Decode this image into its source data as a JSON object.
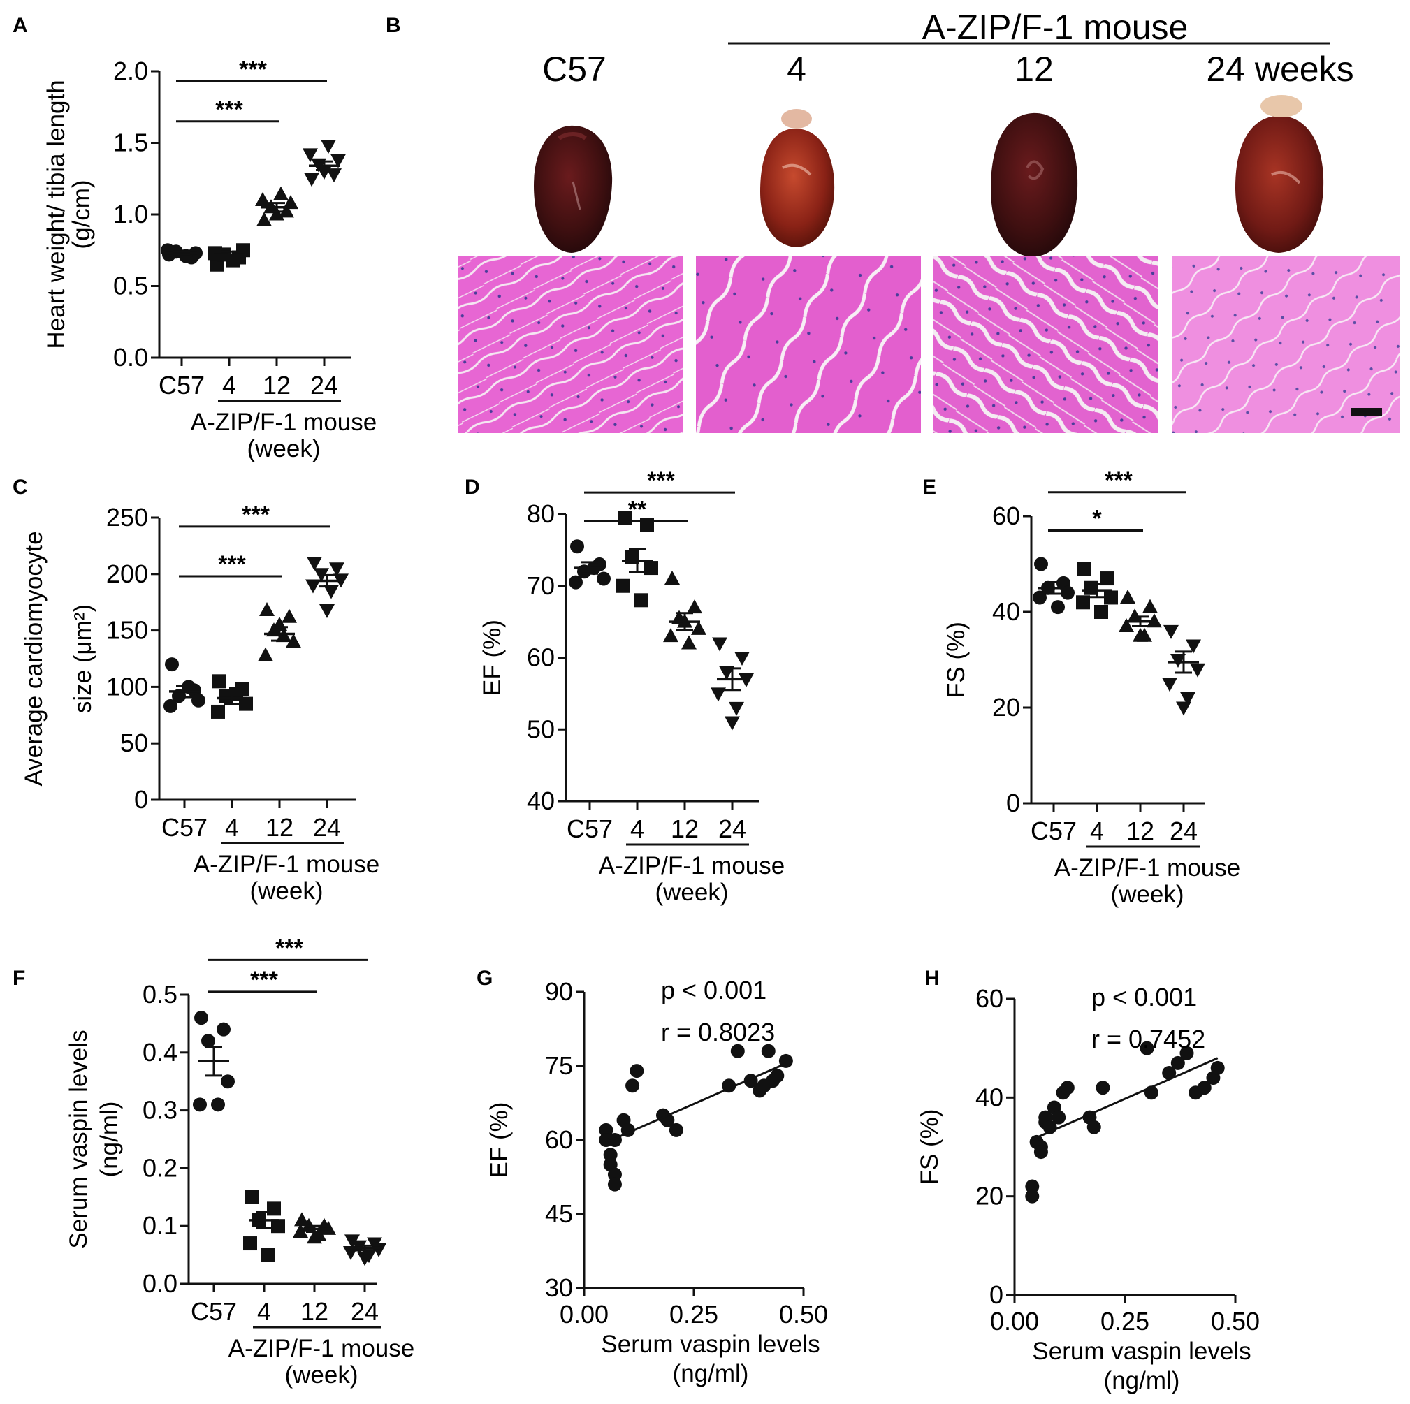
{
  "panel_labels": {
    "A": "A",
    "B": "B",
    "C": "C",
    "D": "D",
    "E": "E",
    "F": "F",
    "G": "G",
    "H": "H"
  },
  "colors": {
    "ink": "#111111",
    "heart_dark": "#3e0f10",
    "heart_red": "#8a2216",
    "tissue_pink": "#e75fd0",
    "tissue_space": "#f2ecec",
    "nuclei": "#4a3d9a"
  },
  "panel_b": {
    "group_label": "A-ZIP/F-1 mouse",
    "columns": [
      "C57",
      "4",
      "12",
      "24 weeks"
    ]
  },
  "chart_data": [
    {
      "id": "A",
      "type": "scatter-dot",
      "ylabel": [
        "Heart weight/ tibia length",
        "(g/cm)"
      ],
      "yticks": [
        0.0,
        0.5,
        1.0,
        1.5,
        2.0
      ],
      "ytick_labels": [
        "0.0",
        "0.5",
        "1.0",
        "1.5",
        "2.0"
      ],
      "ylim": [
        0,
        2.0
      ],
      "categories": [
        "C57",
        "4",
        "12",
        "24"
      ],
      "group_label": [
        "A-ZIP/F-1 mouse",
        "(week)"
      ],
      "markers": [
        "circle",
        "square",
        "triangle",
        "triangle-down"
      ],
      "points": [
        [
          0.72,
          0.7,
          0.74,
          0.73,
          0.75,
          0.71
        ],
        [
          0.65,
          0.7,
          0.72,
          0.75,
          0.73,
          0.68
        ],
        [
          0.96,
          1.02,
          1.05,
          1.08,
          1.1,
          1.14,
          1.0
        ],
        [
          1.25,
          1.28,
          1.35,
          1.38,
          1.42,
          1.48,
          1.3
        ]
      ],
      "mean": [
        0.73,
        0.72,
        1.05,
        1.34
      ],
      "sem": [
        0.01,
        0.02,
        0.03,
        0.03
      ],
      "sig": [
        {
          "from": 0,
          "to": 2,
          "label": "***",
          "y": 1.65
        },
        {
          "from": 0,
          "to": 3,
          "label": "***",
          "y": 1.93
        }
      ]
    },
    {
      "id": "C",
      "type": "scatter-dot",
      "ylabel": [
        "Average cardiomyocyte",
        "size (μm²)"
      ],
      "yticks": [
        0,
        50,
        100,
        150,
        200,
        250
      ],
      "ytick_labels": [
        "0",
        "50",
        "100",
        "150",
        "200",
        "250"
      ],
      "ylim": [
        0,
        250
      ],
      "categories": [
        "C57",
        "4",
        "12",
        "24"
      ],
      "group_label": [
        "A-ZIP/F-1 mouse",
        "(week)"
      ],
      "markers": [
        "circle",
        "square",
        "triangle",
        "triangle-down"
      ],
      "points": [
        [
          120,
          97,
          92,
          88,
          83,
          100
        ],
        [
          105,
          98,
          92,
          85,
          78,
          94
        ],
        [
          168,
          162,
          150,
          140,
          128,
          145,
          155
        ],
        [
          210,
          205,
          200,
          195,
          190,
          185,
          168
        ]
      ],
      "mean": [
        96,
        90,
        147,
        194
      ],
      "sem": [
        5,
        5,
        6,
        5
      ],
      "sig": [
        {
          "from": 0,
          "to": 2,
          "label": "***",
          "y": 198
        },
        {
          "from": 0,
          "to": 3,
          "label": "***",
          "y": 242
        }
      ]
    },
    {
      "id": "D",
      "type": "scatter-dot",
      "ylabel": [
        "EF (%)"
      ],
      "yticks": [
        40,
        50,
        60,
        70,
        80
      ],
      "ytick_labels": [
        "40",
        "50",
        "60",
        "70",
        "80"
      ],
      "ylim": [
        40,
        80
      ],
      "categories": [
        "C57",
        "4",
        "12",
        "24"
      ],
      "group_label": [
        "A-ZIP/F-1 mouse",
        "(week)"
      ],
      "markers": [
        "circle",
        "square",
        "triangle",
        "triangle-down"
      ],
      "points": [
        [
          75.5,
          73,
          72,
          71,
          70.5,
          72.5
        ],
        [
          79.5,
          78.5,
          74,
          72.5,
          70,
          68
        ],
        [
          71,
          67,
          65.5,
          64,
          63,
          62,
          65
        ],
        [
          62,
          60,
          58,
          57,
          55,
          53,
          51
        ]
      ],
      "mean": [
        72.5,
        73.5,
        65,
        57
      ],
      "sem": [
        0.8,
        1.6,
        1.2,
        1.5
      ],
      "sig": [
        {
          "from": 0,
          "to": 2,
          "label": "**",
          "y": 79
        },
        {
          "from": 0,
          "to": 3,
          "label": "***",
          "y": 83
        }
      ]
    },
    {
      "id": "E",
      "type": "scatter-dot",
      "ylabel": [
        "FS (%)"
      ],
      "yticks": [
        0,
        20,
        40,
        60
      ],
      "ytick_labels": [
        "0",
        "20",
        "40",
        "60"
      ],
      "ylim": [
        0,
        60
      ],
      "categories": [
        "C57",
        "4",
        "12",
        "24"
      ],
      "group_label": [
        "A-ZIP/F-1 mouse",
        "(week)"
      ],
      "markers": [
        "circle",
        "square",
        "triangle",
        "triangle-down"
      ],
      "points": [
        [
          50,
          46,
          45,
          44,
          43,
          41
        ],
        [
          49,
          47,
          45,
          43,
          42,
          40
        ],
        [
          43,
          41,
          39,
          38,
          37,
          35,
          35
        ],
        [
          36,
          33,
          30,
          28,
          25,
          22,
          20
        ]
      ],
      "mean": [
        45,
        44.5,
        38,
        29.5
      ],
      "sem": [
        1.2,
        1.4,
        1.0,
        2.2
      ],
      "sig": [
        {
          "from": 0,
          "to": 2,
          "label": "*",
          "y": 57
        },
        {
          "from": 0,
          "to": 3,
          "label": "***",
          "y": 65
        }
      ]
    },
    {
      "id": "F",
      "type": "scatter-dot",
      "ylabel": [
        "Serum vaspin levels",
        "(ng/ml)"
      ],
      "yticks": [
        0.0,
        0.1,
        0.2,
        0.3,
        0.4,
        0.5
      ],
      "ytick_labels": [
        "0.0",
        "0.1",
        "0.2",
        "0.3",
        "0.4",
        "0.5"
      ],
      "ylim": [
        0,
        0.5
      ],
      "categories": [
        "C57",
        "4",
        "12",
        "24"
      ],
      "group_label": [
        "A-ZIP/F-1 mouse",
        "(week)"
      ],
      "markers": [
        "circle",
        "square",
        "triangle",
        "triangle-down"
      ],
      "points": [
        [
          0.46,
          0.44,
          0.42,
          0.35,
          0.31,
          0.31
        ],
        [
          0.15,
          0.13,
          0.11,
          0.1,
          0.07,
          0.05
        ],
        [
          0.11,
          0.1,
          0.1,
          0.095,
          0.09,
          0.085,
          0.08
        ],
        [
          0.075,
          0.07,
          0.065,
          0.06,
          0.055,
          0.05,
          0.045
        ]
      ],
      "mean": [
        0.385,
        0.11,
        0.095,
        0.062
      ],
      "sem": [
        0.025,
        0.014,
        0.005,
        0.004
      ],
      "sig": [
        {
          "from": 0,
          "to": 2,
          "label": "***",
          "y": 0.505
        },
        {
          "from": 0,
          "to": 3,
          "label": "***",
          "y": 0.56
        }
      ]
    },
    {
      "id": "G",
      "type": "scatter-regression",
      "ylabel": [
        "EF (%)"
      ],
      "xlabel": [
        "Serum vaspin levels",
        "(ng/ml)"
      ],
      "yticks": [
        30,
        45,
        60,
        75,
        90
      ],
      "ytick_labels": [
        "30",
        "45",
        "60",
        "75",
        "90"
      ],
      "ylim": [
        30,
        90
      ],
      "xticks": [
        0.0,
        0.25,
        0.5
      ],
      "xtick_labels": [
        "0.00",
        "0.25",
        "0.50"
      ],
      "xlim": [
        0,
        0.5
      ],
      "stats": [
        "p < 0.001",
        "r = 0.8023"
      ],
      "x": [
        0.05,
        0.05,
        0.06,
        0.06,
        0.07,
        0.07,
        0.07,
        0.09,
        0.1,
        0.11,
        0.12,
        0.18,
        0.19,
        0.21,
        0.33,
        0.35,
        0.38,
        0.4,
        0.41,
        0.42,
        0.43,
        0.44,
        0.46
      ],
      "y": [
        62,
        60,
        57,
        55,
        53,
        51,
        60,
        64,
        62,
        71,
        74,
        65,
        64,
        62,
        71,
        78,
        72,
        70,
        71,
        78,
        72,
        73,
        76
      ],
      "fit": {
        "x": [
          0.05,
          0.46
        ],
        "y": [
          59.5,
          75.5
        ]
      }
    },
    {
      "id": "H",
      "type": "scatter-regression",
      "ylabel": [
        "FS (%)"
      ],
      "xlabel": [
        "Serum vaspin levels",
        "(ng/ml)"
      ],
      "yticks": [
        0,
        20,
        40,
        60
      ],
      "ytick_labels": [
        "0",
        "20",
        "40",
        "60"
      ],
      "ylim": [
        0,
        60
      ],
      "xticks": [
        0.0,
        0.25,
        0.5
      ],
      "xtick_labels": [
        "0.00",
        "0.25",
        "0.50"
      ],
      "xlim": [
        0,
        0.5
      ],
      "stats": [
        "p < 0.001",
        "r = 0.7452"
      ],
      "x": [
        0.04,
        0.04,
        0.05,
        0.06,
        0.06,
        0.07,
        0.07,
        0.08,
        0.09,
        0.1,
        0.11,
        0.12,
        0.17,
        0.18,
        0.2,
        0.3,
        0.31,
        0.35,
        0.37,
        0.39,
        0.41,
        0.43,
        0.45,
        0.46
      ],
      "y": [
        22,
        20,
        31,
        30,
        29,
        35,
        36,
        34,
        38,
        36,
        41,
        42,
        36,
        34,
        42,
        50,
        41,
        45,
        47,
        49,
        41,
        42,
        44,
        46
      ],
      "fit": {
        "x": [
          0.04,
          0.46
        ],
        "y": [
          31.5,
          48
        ]
      }
    }
  ]
}
